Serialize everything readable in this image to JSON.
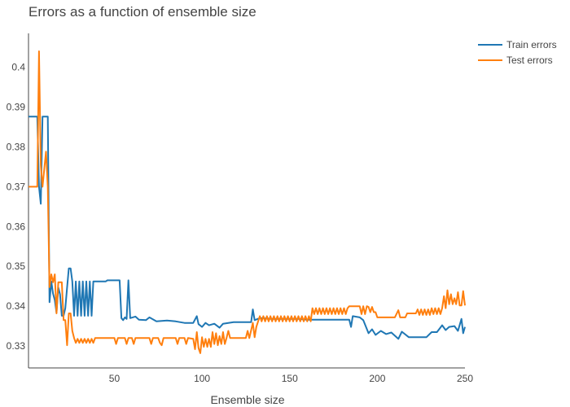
{
  "chart_data": {
    "type": "line",
    "title": "Errors as a function of ensemble size",
    "xlabel": "Ensemble size",
    "ylabel": "",
    "xlim": [
      1,
      250
    ],
    "ylim": [
      0.3245,
      0.4085
    ],
    "x_ticks": [
      50,
      100,
      150,
      200,
      250
    ],
    "y_ticks": [
      0.33,
      0.34,
      0.35,
      0.36,
      0.37,
      0.38,
      0.39,
      0.4
    ],
    "grid": false,
    "legend_position": "top-right",
    "series": [
      {
        "name": "Train errors",
        "color": "#1f77b4",
        "points": [
          [
            1,
            0.3876
          ],
          [
            6,
            0.3876
          ],
          [
            7,
            0.37
          ],
          [
            8,
            0.3657
          ],
          [
            9,
            0.3876
          ],
          [
            12,
            0.3876
          ],
          [
            13,
            0.341
          ],
          [
            14,
            0.3462
          ],
          [
            15,
            0.3432
          ],
          [
            16,
            0.3415
          ],
          [
            17,
            0.3384
          ],
          [
            18,
            0.3447
          ],
          [
            19,
            0.343
          ],
          [
            20,
            0.3376
          ],
          [
            21,
            0.3376
          ],
          [
            22,
            0.3395
          ],
          [
            23,
            0.3447
          ],
          [
            24,
            0.3495
          ],
          [
            25,
            0.3495
          ],
          [
            26,
            0.3462
          ],
          [
            27,
            0.3376
          ],
          [
            28,
            0.3462
          ],
          [
            29,
            0.3376
          ],
          [
            30,
            0.3462
          ],
          [
            31,
            0.3376
          ],
          [
            32,
            0.3462
          ],
          [
            33,
            0.3376
          ],
          [
            34,
            0.3462
          ],
          [
            35,
            0.3376
          ],
          [
            36,
            0.3462
          ],
          [
            37,
            0.3376
          ],
          [
            38,
            0.3462
          ],
          [
            39,
            0.3462
          ],
          [
            45,
            0.3462
          ],
          [
            46,
            0.3465
          ],
          [
            53,
            0.3465
          ],
          [
            54,
            0.337
          ],
          [
            55,
            0.3365
          ],
          [
            56,
            0.3372
          ],
          [
            57,
            0.3368
          ],
          [
            58,
            0.3465
          ],
          [
            59,
            0.337
          ],
          [
            62,
            0.3374
          ],
          [
            64,
            0.3366
          ],
          [
            68,
            0.3365
          ],
          [
            70,
            0.3372
          ],
          [
            74,
            0.3362
          ],
          [
            80,
            0.3364
          ],
          [
            85,
            0.3362
          ],
          [
            90,
            0.3358
          ],
          [
            95,
            0.3358
          ],
          [
            97,
            0.3375
          ],
          [
            98,
            0.3355
          ],
          [
            100,
            0.3348
          ],
          [
            102,
            0.3358
          ],
          [
            104,
            0.3352
          ],
          [
            107,
            0.3356
          ],
          [
            110,
            0.3346
          ],
          [
            112,
            0.3356
          ],
          [
            118,
            0.336
          ],
          [
            128,
            0.336
          ],
          [
            129,
            0.3392
          ],
          [
            130,
            0.3365
          ],
          [
            133,
            0.337
          ],
          [
            140,
            0.3368
          ],
          [
            155,
            0.3368
          ],
          [
            160,
            0.3366
          ],
          [
            175,
            0.3366
          ],
          [
            184,
            0.3366
          ],
          [
            185,
            0.3348
          ],
          [
            186,
            0.3375
          ],
          [
            190,
            0.3372
          ],
          [
            192,
            0.3365
          ],
          [
            195,
            0.3332
          ],
          [
            197,
            0.3342
          ],
          [
            199,
            0.3328
          ],
          [
            202,
            0.3338
          ],
          [
            205,
            0.333
          ],
          [
            208,
            0.3334
          ],
          [
            212,
            0.3318
          ],
          [
            214,
            0.3336
          ],
          [
            218,
            0.3322
          ],
          [
            228,
            0.3322
          ],
          [
            231,
            0.3335
          ],
          [
            234,
            0.3335
          ],
          [
            237,
            0.3352
          ],
          [
            239,
            0.334
          ],
          [
            241,
            0.3348
          ],
          [
            244,
            0.335
          ],
          [
            246,
            0.3338
          ],
          [
            248,
            0.3368
          ],
          [
            249,
            0.3332
          ],
          [
            250,
            0.3348
          ]
        ]
      },
      {
        "name": "Test errors",
        "color": "#ff7f0e",
        "points": [
          [
            1,
            0.37
          ],
          [
            6,
            0.37
          ],
          [
            7,
            0.404
          ],
          [
            8,
            0.3755
          ],
          [
            9,
            0.37
          ],
          [
            11,
            0.3788
          ],
          [
            12,
            0.37
          ],
          [
            13,
            0.3448
          ],
          [
            14,
            0.348
          ],
          [
            15,
            0.346
          ],
          [
            16,
            0.348
          ],
          [
            17,
            0.3382
          ],
          [
            18,
            0.346
          ],
          [
            20,
            0.346
          ],
          [
            21,
            0.3365
          ],
          [
            22,
            0.3365
          ],
          [
            23,
            0.3302
          ],
          [
            24,
            0.3382
          ],
          [
            25,
            0.3382
          ],
          [
            26,
            0.3338
          ],
          [
            27,
            0.332
          ],
          [
            28,
            0.3308
          ],
          [
            29,
            0.3318
          ],
          [
            30,
            0.3308
          ],
          [
            31,
            0.3318
          ],
          [
            32,
            0.3308
          ],
          [
            33,
            0.3318
          ],
          [
            34,
            0.3308
          ],
          [
            35,
            0.3318
          ],
          [
            36,
            0.3308
          ],
          [
            37,
            0.3318
          ],
          [
            38,
            0.3308
          ],
          [
            39,
            0.332
          ],
          [
            50,
            0.332
          ],
          [
            51,
            0.3305
          ],
          [
            52,
            0.332
          ],
          [
            56,
            0.332
          ],
          [
            57,
            0.3305
          ],
          [
            58,
            0.332
          ],
          [
            60,
            0.332
          ],
          [
            61,
            0.3305
          ],
          [
            62,
            0.332
          ],
          [
            70,
            0.332
          ],
          [
            71,
            0.3305
          ],
          [
            72,
            0.332
          ],
          [
            75,
            0.332
          ],
          [
            76,
            0.3308
          ],
          [
            77,
            0.3302
          ],
          [
            78,
            0.332
          ],
          [
            85,
            0.332
          ],
          [
            86,
            0.3305
          ],
          [
            87,
            0.332
          ],
          [
            90,
            0.332
          ],
          [
            91,
            0.3305
          ],
          [
            92,
            0.332
          ],
          [
            95,
            0.3318
          ],
          [
            96,
            0.3292
          ],
          [
            97,
            0.3335
          ],
          [
            98,
            0.3295
          ],
          [
            99,
            0.3282
          ],
          [
            100,
            0.3322
          ],
          [
            101,
            0.3298
          ],
          [
            102,
            0.3318
          ],
          [
            103,
            0.3298
          ],
          [
            104,
            0.3318
          ],
          [
            105,
            0.3298
          ],
          [
            106,
            0.3335
          ],
          [
            107,
            0.3305
          ],
          [
            108,
            0.3332
          ],
          [
            109,
            0.3302
          ],
          [
            110,
            0.3325
          ],
          [
            111,
            0.3305
          ],
          [
            112,
            0.3335
          ],
          [
            113,
            0.3305
          ],
          [
            114,
            0.332
          ],
          [
            115,
            0.3338
          ],
          [
            116,
            0.332
          ],
          [
            120,
            0.332
          ],
          [
            125,
            0.332
          ],
          [
            126,
            0.3338
          ],
          [
            127,
            0.332
          ],
          [
            129,
            0.3358
          ],
          [
            130,
            0.3322
          ],
          [
            131,
            0.3348
          ],
          [
            132,
            0.3362
          ],
          [
            133,
            0.3375
          ],
          [
            134,
            0.3362
          ],
          [
            135,
            0.3375
          ],
          [
            136,
            0.3362
          ],
          [
            137,
            0.3375
          ],
          [
            138,
            0.3362
          ],
          [
            139,
            0.3375
          ],
          [
            140,
            0.3362
          ],
          [
            141,
            0.3375
          ],
          [
            142,
            0.3362
          ],
          [
            143,
            0.3375
          ],
          [
            144,
            0.3362
          ],
          [
            145,
            0.3375
          ],
          [
            146,
            0.3362
          ],
          [
            147,
            0.3375
          ],
          [
            148,
            0.3362
          ],
          [
            149,
            0.3375
          ],
          [
            150,
            0.3362
          ],
          [
            151,
            0.3375
          ],
          [
            152,
            0.3362
          ],
          [
            153,
            0.3375
          ],
          [
            154,
            0.3362
          ],
          [
            155,
            0.3375
          ],
          [
            156,
            0.3362
          ],
          [
            157,
            0.3375
          ],
          [
            158,
            0.3362
          ],
          [
            159,
            0.3375
          ],
          [
            160,
            0.3362
          ],
          [
            161,
            0.3375
          ],
          [
            162,
            0.3362
          ],
          [
            163,
            0.3395
          ],
          [
            164,
            0.338
          ],
          [
            165,
            0.3395
          ],
          [
            166,
            0.338
          ],
          [
            167,
            0.3395
          ],
          [
            168,
            0.338
          ],
          [
            169,
            0.3395
          ],
          [
            170,
            0.338
          ],
          [
            171,
            0.3395
          ],
          [
            172,
            0.338
          ],
          [
            173,
            0.3395
          ],
          [
            174,
            0.338
          ],
          [
            175,
            0.3395
          ],
          [
            176,
            0.338
          ],
          [
            177,
            0.3395
          ],
          [
            178,
            0.338
          ],
          [
            179,
            0.3395
          ],
          [
            180,
            0.338
          ],
          [
            181,
            0.3395
          ],
          [
            182,
            0.338
          ],
          [
            183,
            0.3395
          ],
          [
            184,
            0.34
          ],
          [
            190,
            0.34
          ],
          [
            191,
            0.338
          ],
          [
            192,
            0.34
          ],
          [
            193,
            0.338
          ],
          [
            194,
            0.34
          ],
          [
            195,
            0.3398
          ],
          [
            196,
            0.3385
          ],
          [
            197,
            0.3398
          ],
          [
            198,
            0.3385
          ],
          [
            199,
            0.3385
          ],
          [
            200,
            0.3372
          ],
          [
            203,
            0.3372
          ],
          [
            206,
            0.3372
          ],
          [
            210,
            0.3372
          ],
          [
            212,
            0.339
          ],
          [
            213,
            0.3372
          ],
          [
            216,
            0.3372
          ],
          [
            217,
            0.3382
          ],
          [
            222,
            0.3382
          ],
          [
            223,
            0.3392
          ],
          [
            224,
            0.3378
          ],
          [
            225,
            0.3392
          ],
          [
            226,
            0.3378
          ],
          [
            227,
            0.3392
          ],
          [
            228,
            0.3378
          ],
          [
            229,
            0.3392
          ],
          [
            230,
            0.3378
          ],
          [
            231,
            0.3395
          ],
          [
            232,
            0.338
          ],
          [
            233,
            0.3395
          ],
          [
            234,
            0.338
          ],
          [
            235,
            0.3395
          ],
          [
            236,
            0.338
          ],
          [
            237,
            0.3395
          ],
          [
            238,
            0.3425
          ],
          [
            239,
            0.3395
          ],
          [
            240,
            0.344
          ],
          [
            241,
            0.3405
          ],
          [
            242,
            0.343
          ],
          [
            243,
            0.3405
          ],
          [
            244,
            0.342
          ],
          [
            245,
            0.3405
          ],
          [
            246,
            0.3435
          ],
          [
            247,
            0.3402
          ],
          [
            248,
            0.3402
          ],
          [
            249,
            0.3438
          ],
          [
            250,
            0.3402
          ]
        ]
      }
    ]
  }
}
